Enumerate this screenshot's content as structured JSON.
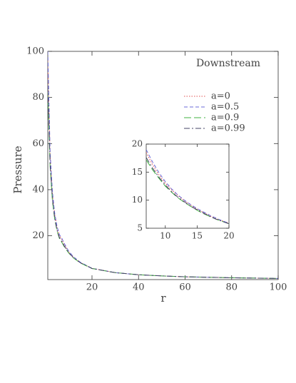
{
  "chart_data": [
    {
      "type": "line",
      "annotation": "Downstream",
      "xlabel": "r",
      "ylabel": "Pressure",
      "xlim": [
        1,
        100
      ],
      "ylim": [
        1,
        100
      ],
      "xticks": [
        20,
        40,
        60,
        80,
        100
      ],
      "yticks": [
        20,
        40,
        60,
        80,
        100
      ],
      "legend": "upper right",
      "x": [
        1,
        2,
        3,
        4,
        5,
        6,
        7,
        8,
        10,
        12,
        15,
        20,
        30,
        40,
        50,
        60,
        80,
        100
      ],
      "series": [
        {
          "name": "a=0",
          "color": "#e05050",
          "dash": "dotted",
          "values": [
            96,
            55,
            38,
            29,
            23.5,
            20,
            18.5,
            16.3,
            13,
            10.8,
            8.4,
            5.9,
            4,
            3.1,
            2.6,
            2.2,
            1.8,
            1.5
          ]
        },
        {
          "name": "a=0.5",
          "color": "#6a6ad8",
          "dash": "dashed",
          "values": [
            100,
            56,
            39,
            29.5,
            24,
            20.5,
            19,
            16.8,
            13.3,
            10.9,
            8.5,
            5.9,
            4,
            3.1,
            2.6,
            2.2,
            1.8,
            1.5
          ]
        },
        {
          "name": "a=0.9",
          "color": "#40b040",
          "dash": "long-dashed",
          "values": [
            82,
            50,
            35,
            27,
            22,
            18.8,
            17.2,
            15.4,
            12.5,
            10.4,
            8.2,
            5.8,
            4,
            3.1,
            2.6,
            2.2,
            1.8,
            1.5
          ]
        },
        {
          "name": "a=0.99",
          "color": "#444466",
          "dash": "dash-dot",
          "values": [
            85,
            51,
            36,
            27.5,
            22.3,
            19.2,
            17.6,
            15.7,
            12.7,
            10.5,
            8.3,
            5.8,
            4,
            3.1,
            2.6,
            2.2,
            1.8,
            1.5
          ]
        }
      ]
    },
    {
      "type": "line",
      "xlim": [
        7,
        20
      ],
      "ylim": [
        5,
        20
      ],
      "xticks": [
        10,
        15,
        20
      ],
      "yticks": [
        5,
        10,
        15,
        20
      ],
      "x": [
        7,
        8,
        9,
        10,
        11,
        12,
        13,
        14,
        15,
        16,
        17,
        18,
        19,
        20
      ],
      "series": [
        {
          "color": "#e05050",
          "dash": "dotted",
          "values": [
            18.5,
            16.3,
            14.5,
            13,
            11.8,
            10.8,
            9.9,
            9.1,
            8.4,
            7.8,
            7.2,
            6.7,
            6.3,
            5.9
          ]
        },
        {
          "color": "#6a6ad8",
          "dash": "dashed",
          "values": [
            19,
            16.8,
            14.9,
            13.3,
            12,
            10.9,
            10,
            9.2,
            8.5,
            7.9,
            7.3,
            6.8,
            6.3,
            5.9
          ]
        },
        {
          "color": "#40b040",
          "dash": "long-dashed",
          "values": [
            17.2,
            15.4,
            13.9,
            12.5,
            11.4,
            10.4,
            9.6,
            8.9,
            8.2,
            7.6,
            7.1,
            6.6,
            6.2,
            5.8
          ]
        },
        {
          "color": "#444466",
          "dash": "dash-dot",
          "values": [
            17.6,
            15.7,
            14.1,
            12.7,
            11.5,
            10.5,
            9.7,
            8.9,
            8.3,
            7.7,
            7.1,
            6.6,
            6.2,
            5.8
          ]
        }
      ]
    }
  ]
}
